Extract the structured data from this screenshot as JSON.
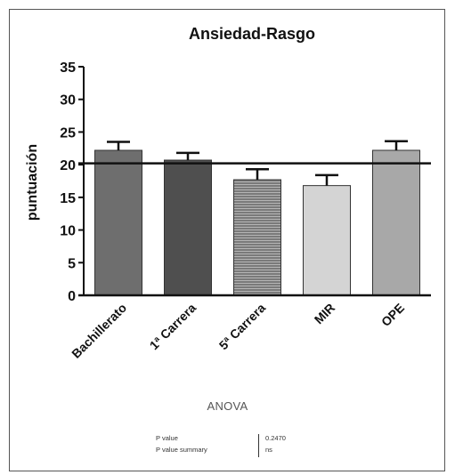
{
  "chart_data": {
    "type": "bar",
    "title": "Ansiedad-Rasgo",
    "xlabel": "",
    "ylabel": "puntuación",
    "ylim": [
      0,
      35
    ],
    "yticks": [
      0,
      5,
      10,
      15,
      20,
      25,
      30,
      35
    ],
    "categories": [
      "Bachillerato",
      "1ª Carrera",
      "5ª Carrera",
      "MIR",
      "OPE"
    ],
    "values": [
      22.2,
      20.7,
      17.7,
      16.8,
      22.2
    ],
    "error": [
      1.3,
      1.1,
      1.6,
      1.6,
      1.4
    ],
    "bar_colors": [
      "#6e6e6e",
      "#4f4f4f",
      "#8a8a8a",
      "#d4d4d4",
      "#a8a8a8"
    ],
    "bar_patterns": [
      "solid",
      "solid",
      "hlines",
      "solid",
      "solid"
    ],
    "reference_line": 20.2,
    "grid": false,
    "legend": "none"
  },
  "anova": {
    "title": "ANOVA",
    "rows": [
      {
        "label": "P value",
        "value": "0.2470"
      },
      {
        "label": "P value summary",
        "value": "ns"
      }
    ]
  }
}
